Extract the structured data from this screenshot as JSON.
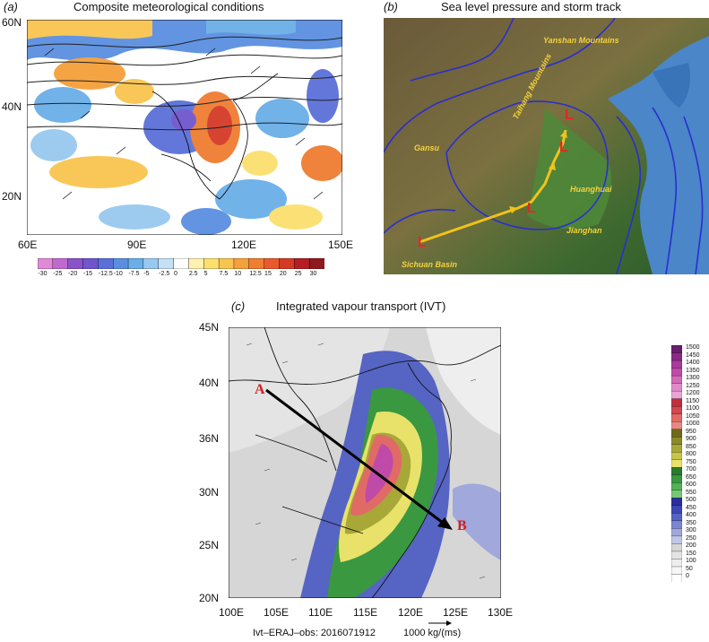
{
  "panel_a": {
    "letter": "(a)",
    "title": "Composite meteorological conditions",
    "x_ticks": [
      "60E",
      "90E",
      "120E",
      "150E"
    ],
    "y_ticks": [
      "60N",
      "40N",
      "20N"
    ],
    "colorbar_ticks": [
      "-30",
      "-25",
      "-20",
      "-15",
      "-12.5",
      "-10",
      "-7.5",
      "-5",
      "-2.5",
      "0",
      "2.5",
      "5",
      "7.5",
      "10",
      "12.5",
      "15",
      "20",
      "25",
      "30"
    ],
    "colorbar_colors": [
      "#e08ad6",
      "#c06ad0",
      "#8a52c8",
      "#6f56cc",
      "#5a70d8",
      "#5a8fe0",
      "#6aaee8",
      "#98c9f0",
      "#c5e0f5",
      "#ffffff",
      "#fff2b0",
      "#fbe06e",
      "#f8c550",
      "#f5a03a",
      "#ef7d32",
      "#e85a2c",
      "#d43a26",
      "#b51e22",
      "#8e1a1e"
    ]
  },
  "panel_b": {
    "letter": "(b)",
    "title": "Sea level pressure and storm track",
    "regions": [
      "Yanshan Mountains",
      "Taihang Mountains",
      "Gansu",
      "Huanghuai",
      "Jianghan",
      "Sichuan Basin"
    ],
    "storm_marker": "L"
  },
  "panel_c": {
    "letter": "(c)",
    "title": "Integrated vapour transport (IVT)",
    "x_ticks": [
      "100E",
      "105E",
      "110E",
      "115E",
      "120E",
      "125E",
      "130E"
    ],
    "y_ticks": [
      "45N",
      "40N",
      "36N",
      "30N",
      "25N",
      "20N"
    ],
    "point_a": "A",
    "point_b": "B",
    "colorbar_ticks": [
      "1500",
      "1450",
      "1400",
      "1350",
      "1300",
      "1250",
      "1200",
      "1150",
      "1100",
      "1050",
      "1000",
      "950",
      "900",
      "850",
      "800",
      "750",
      "700",
      "650",
      "600",
      "550",
      "500",
      "450",
      "400",
      "350",
      "300",
      "250",
      "200",
      "150",
      "100",
      "50",
      "0"
    ],
    "colorbar_colors": [
      "#6a1f6a",
      "#8a2a84",
      "#a83a9c",
      "#c04aa8",
      "#d46ab8",
      "#e08ac8",
      "#e8a6d6",
      "#c0303c",
      "#d04850",
      "#e06a66",
      "#e88a82",
      "#6e6a1c",
      "#8a8a2a",
      "#a8a838",
      "#c8c448",
      "#e8e26a",
      "#2a7a2e",
      "#3a9840",
      "#52b256",
      "#76c874",
      "#2a2ea0",
      "#3c46b4",
      "#5664c4",
      "#7a86d0",
      "#a0a8dc",
      "#c2c6e6",
      "#d6d6d6",
      "#e4e4e4",
      "#eeeeee",
      "#f6f6f6",
      "#ffffff"
    ],
    "footer_left": "Ivt–ERAJ–obs: 2016071912",
    "footer_right": "1000 kg/(ms)"
  }
}
